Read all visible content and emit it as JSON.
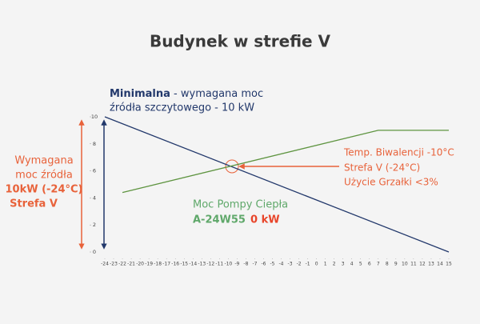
{
  "chart_data": {
    "type": "line",
    "title": "Budynek w strefie V",
    "xlim": [
      -24,
      15
    ],
    "ylim": [
      0,
      10
    ],
    "xticks": [
      -24,
      -23,
      -22,
      -21,
      -20,
      -19,
      -18,
      -17,
      -16,
      -15,
      -14,
      -13,
      -12,
      -11,
      -10,
      -9,
      -8,
      -7,
      -6,
      -5,
      -4,
      -3,
      -2,
      -1,
      0,
      1,
      2,
      3,
      4,
      5,
      6,
      7,
      8,
      9,
      10,
      11,
      12,
      13,
      14,
      15
    ],
    "yticks": [
      0,
      2,
      4,
      6,
      8,
      10
    ],
    "series": [
      {
        "name": "Minimalna",
        "color": "#22386b",
        "x": [
          -24,
          15
        ],
        "values": [
          10,
          0
        ]
      },
      {
        "name": "Moc Pompy Ciepła",
        "color": "#5e9440",
        "x": [
          -22,
          7,
          15
        ],
        "values": [
          4.4,
          9,
          9
        ]
      }
    ],
    "annotations": {
      "minimum": [
        "Minimalna",
        " - wymagana moc",
        "źródła szczytowego  -  10 kW"
      ],
      "required": [
        "Wymagana",
        "moc źródła",
        "10kW (-24°C)",
        "Strefa V"
      ],
      "bivalent": [
        "Temp. Biwalencji -10°C",
        "Strefa V (-24°C)",
        "Użycie Grzałki  <3%"
      ],
      "pump": [
        "Moc Pompy Ciepła",
        "A-24W55",
        "0 kW"
      ]
    }
  }
}
